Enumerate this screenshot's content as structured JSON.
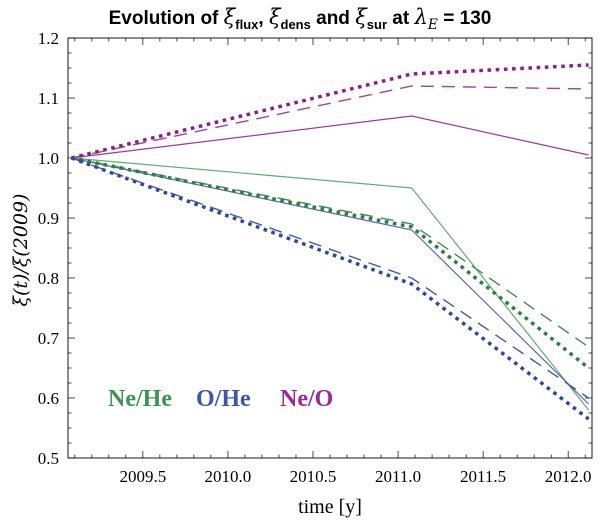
{
  "title": {
    "part1": "Evolution of ",
    "xi1": "ξ",
    "sub1": "flux",
    "part2": ", ",
    "xi2": "ξ",
    "sub2": "dens",
    "part3": " and ",
    "xi3": "ξ",
    "sub3": "sur",
    "part4": " at ",
    "lambda": "λ",
    "subE": "E",
    "part5": " = 130"
  },
  "legend": [
    {
      "label": "Ne/He",
      "color": "#3c9453"
    },
    {
      "label": "O/He",
      "color": "#3a57a8"
    },
    {
      "label": "Ne/O",
      "color": "#9e2897"
    }
  ],
  "chart_data": {
    "type": "line",
    "title": "Evolution of ξ_flux, ξ_dens and ξ_sur at λ_E = 130",
    "xlabel": "time [y]",
    "ylabel": "ξ(t)/ξ(2009)",
    "xlim": [
      2009.06,
      2012.14
    ],
    "ylim": [
      0.5,
      1.2
    ],
    "xticks": [
      2009.5,
      2010.0,
      2010.5,
      2011.0,
      2011.5,
      2012.0
    ],
    "xtick_labels": [
      "2009.5",
      "2010.0",
      "2010.5",
      "2011.0",
      "2011.5",
      "2012.0"
    ],
    "yticks": [
      0.5,
      0.6,
      0.7,
      0.8,
      0.9,
      1.0,
      1.1,
      1.2
    ],
    "ytick_labels": [
      "0.5",
      "0.6",
      "0.7",
      "0.8",
      "0.9",
      "1.0",
      "1.1",
      "1.2"
    ],
    "xminor_step": 0.1,
    "yminor_step": 0.025,
    "grid": false,
    "legend_position": "inside-bottom-left",
    "x": [
      2009.08,
      2011.08,
      2012.12
    ],
    "series": [
      {
        "ratio": "Ne/O",
        "quantity": "flux",
        "style": "solid",
        "color": "#9c3a99",
        "values": [
          1.0,
          1.07,
          1.005
        ]
      },
      {
        "ratio": "Ne/He",
        "quantity": "flux",
        "style": "solid",
        "color": "#5fae6e",
        "values": [
          1.0,
          0.95,
          0.58
        ]
      },
      {
        "ratio": "O/He",
        "quantity": "flux",
        "style": "solid",
        "color": "#5a68ae",
        "values": [
          1.0,
          0.88,
          0.59
        ]
      },
      {
        "ratio": "Ne/O",
        "quantity": "dens",
        "style": "dashed",
        "color": "#9a4899",
        "values": [
          1.0,
          1.12,
          1.115
        ]
      },
      {
        "ratio": "Ne/He",
        "quantity": "dens",
        "style": "dashed",
        "color": "#3c8f51",
        "values": [
          1.0,
          0.89,
          0.685
        ]
      },
      {
        "ratio": "O/He",
        "quantity": "dens",
        "style": "dashed",
        "color": "#4458a6",
        "values": [
          1.0,
          0.8,
          0.6
        ]
      },
      {
        "ratio": "Ne/O",
        "quantity": "sur",
        "style": "dotted",
        "color": "#8c1d89",
        "values": [
          1.0,
          1.14,
          1.155
        ]
      },
      {
        "ratio": "Ne/He",
        "quantity": "sur",
        "style": "dotted",
        "color": "#2d7d45",
        "values": [
          1.0,
          0.885,
          0.65
        ]
      },
      {
        "ratio": "O/He",
        "quantity": "sur",
        "style": "dotted",
        "color": "#2f479e",
        "values": [
          1.0,
          0.79,
          0.565
        ]
      }
    ]
  }
}
